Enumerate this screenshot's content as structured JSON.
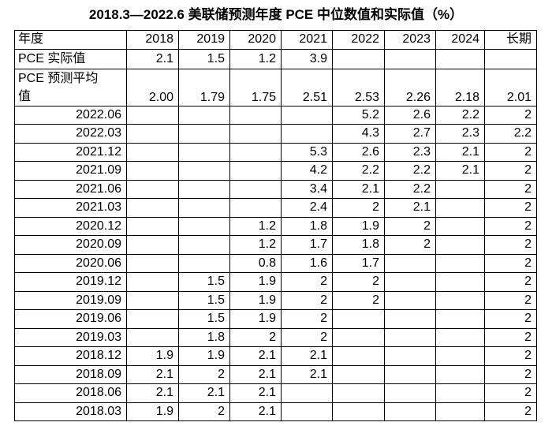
{
  "title": "2018.3—2022.6 美联储预测年度 PCE 中位数值和实际值（%）",
  "table": {
    "header": [
      "年度",
      "2018",
      "2019",
      "2020",
      "2021",
      "2022",
      "2023",
      "2024",
      "长期"
    ],
    "rows": [
      [
        "PCE 实际值",
        "2.1",
        "1.5",
        "1.2",
        "3.9",
        null,
        null,
        null,
        null
      ],
      [
        "PCE 预测平均值",
        "2.00",
        "1.79",
        "1.75",
        "2.51",
        "2.53",
        "2.26",
        "2.18",
        "2.01"
      ],
      [
        "2022.06",
        null,
        null,
        null,
        null,
        "5.2",
        "2.6",
        "2.2",
        "2"
      ],
      [
        "2022.03",
        null,
        null,
        null,
        null,
        "4.3",
        "2.7",
        "2.3",
        "2.2"
      ],
      [
        "2021.12",
        null,
        null,
        null,
        "5.3",
        "2.6",
        "2.3",
        "2.1",
        "2"
      ],
      [
        "2021.09",
        null,
        null,
        null,
        "4.2",
        "2.2",
        "2.2",
        "2.1",
        "2"
      ],
      [
        "2021.06",
        null,
        null,
        null,
        "3.4",
        "2.1",
        "2.2",
        null,
        "2"
      ],
      [
        "2021.03",
        null,
        null,
        null,
        "2.4",
        "2",
        "2.1",
        null,
        "2"
      ],
      [
        "2020.12",
        null,
        null,
        "1.2",
        "1.8",
        "1.9",
        "2",
        null,
        "2"
      ],
      [
        "2020.09",
        null,
        null,
        "1.2",
        "1.7",
        "1.8",
        "2",
        null,
        "2"
      ],
      [
        "2020.06",
        null,
        null,
        "0.8",
        "1.6",
        "1.7",
        null,
        null,
        "2"
      ],
      [
        "2019.12",
        null,
        "1.5",
        "1.9",
        "2",
        "2",
        null,
        null,
        "2"
      ],
      [
        "2019.09",
        null,
        "1.5",
        "1.9",
        "2",
        "2",
        null,
        null,
        "2"
      ],
      [
        "2019.06",
        null,
        "1.5",
        "1.9",
        "2",
        null,
        null,
        null,
        "2"
      ],
      [
        "2019.03",
        null,
        "1.8",
        "2",
        "2",
        null,
        null,
        null,
        "2"
      ],
      [
        "2018.12",
        "1.9",
        "1.9",
        "2.1",
        "2.1",
        null,
        null,
        null,
        "2"
      ],
      [
        "2018.09",
        "2.1",
        "2",
        "2.1",
        "2.1",
        null,
        null,
        null,
        "2"
      ],
      [
        "2018.06",
        "2.1",
        "2.1",
        "2.1",
        null,
        null,
        null,
        null,
        "2"
      ],
      [
        "2018.03",
        "1.9",
        "2",
        "2.1",
        null,
        null,
        null,
        null,
        "2"
      ]
    ]
  }
}
